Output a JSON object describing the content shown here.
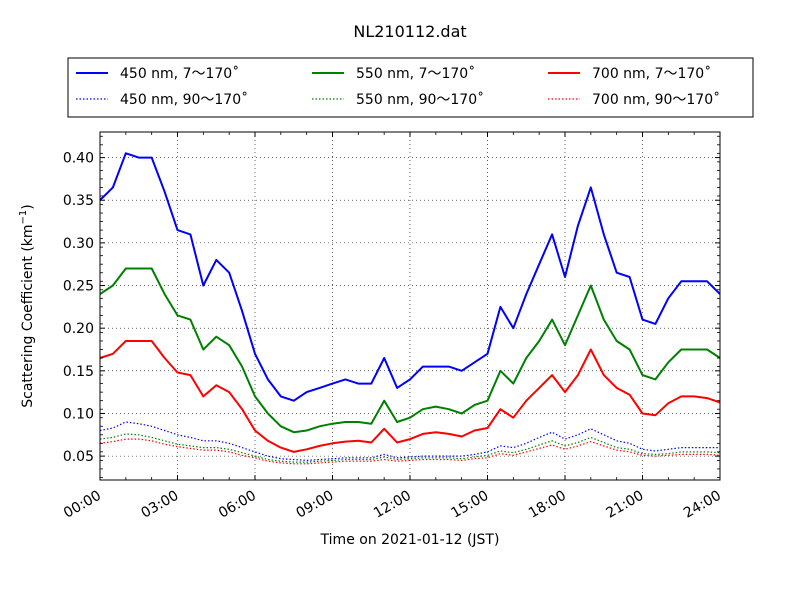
{
  "chart_data": {
    "type": "line",
    "title": "NL210112.dat",
    "xlabel": "Time on 2021-01-12 (JST)",
    "ylabel": "Scattering Coefficient (km",
    "ylabel_sup": "−1",
    "ylabel_end": ")",
    "xlim": [
      "00:00",
      "24:00"
    ],
    "ylim": [
      0.022,
      0.43
    ],
    "x_ticks": [
      "00:00",
      "03:00",
      "06:00",
      "09:00",
      "12:00",
      "15:00",
      "18:00",
      "21:00",
      "24:00"
    ],
    "y_ticks": [
      "0.05",
      "0.10",
      "0.15",
      "0.20",
      "0.25",
      "0.30",
      "0.35",
      "0.40"
    ],
    "grid": true,
    "legend_position": "top, above plot",
    "x": [
      "00:00",
      "00:30",
      "01:00",
      "01:30",
      "02:00",
      "02:30",
      "03:00",
      "03:30",
      "04:00",
      "04:30",
      "05:00",
      "05:30",
      "06:00",
      "06:30",
      "07:00",
      "07:30",
      "08:00",
      "08:30",
      "09:00",
      "09:30",
      "10:00",
      "10:30",
      "11:00",
      "11:30",
      "12:00",
      "12:30",
      "13:00",
      "13:30",
      "14:00",
      "14:30",
      "15:00",
      "15:30",
      "16:00",
      "16:30",
      "17:00",
      "17:30",
      "18:00",
      "18:30",
      "19:00",
      "19:30",
      "20:00",
      "20:30",
      "21:00",
      "21:30",
      "22:00",
      "22:30",
      "23:00",
      "23:30",
      "24:00"
    ],
    "series": [
      {
        "name": "450 nm, 7～170˚",
        "color": "#0000ff",
        "style": "solid",
        "values": [
          0.35,
          0.365,
          0.405,
          0.4,
          0.4,
          0.36,
          0.315,
          0.31,
          0.25,
          0.28,
          0.265,
          0.22,
          0.17,
          0.14,
          0.12,
          0.115,
          0.125,
          0.13,
          0.135,
          0.14,
          0.135,
          0.135,
          0.165,
          0.13,
          0.14,
          0.155,
          0.155,
          0.155,
          0.15,
          0.16,
          0.17,
          0.225,
          0.2,
          0.24,
          0.275,
          0.31,
          0.26,
          0.32,
          0.365,
          0.31,
          0.265,
          0.26,
          0.21,
          0.205,
          0.235,
          0.255,
          0.255,
          0.255,
          0.24
        ]
      },
      {
        "name": "550 nm, 7～170˚",
        "color": "#008000",
        "style": "solid",
        "values": [
          0.24,
          0.25,
          0.27,
          0.27,
          0.27,
          0.24,
          0.215,
          0.21,
          0.175,
          0.19,
          0.18,
          0.155,
          0.12,
          0.1,
          0.085,
          0.078,
          0.08,
          0.085,
          0.088,
          0.09,
          0.09,
          0.088,
          0.115,
          0.09,
          0.095,
          0.105,
          0.108,
          0.105,
          0.1,
          0.11,
          0.115,
          0.15,
          0.135,
          0.165,
          0.185,
          0.21,
          0.18,
          0.215,
          0.25,
          0.21,
          0.185,
          0.175,
          0.145,
          0.14,
          0.16,
          0.175,
          0.175,
          0.175,
          0.165
        ]
      },
      {
        "name": "700 nm, 7～170˚",
        "color": "#ff0000",
        "style": "solid",
        "values": [
          0.165,
          0.17,
          0.185,
          0.185,
          0.185,
          0.165,
          0.148,
          0.145,
          0.12,
          0.133,
          0.125,
          0.105,
          0.08,
          0.068,
          0.06,
          0.055,
          0.058,
          0.062,
          0.065,
          0.067,
          0.068,
          0.066,
          0.082,
          0.066,
          0.07,
          0.076,
          0.078,
          0.076,
          0.073,
          0.08,
          0.083,
          0.105,
          0.095,
          0.115,
          0.13,
          0.145,
          0.125,
          0.145,
          0.175,
          0.145,
          0.13,
          0.122,
          0.1,
          0.098,
          0.112,
          0.12,
          0.12,
          0.118,
          0.113
        ]
      },
      {
        "name": "450 nm, 90～170˚",
        "color": "#0000ff",
        "style": "dotted",
        "values": [
          0.08,
          0.083,
          0.09,
          0.088,
          0.085,
          0.08,
          0.075,
          0.072,
          0.068,
          0.068,
          0.065,
          0.06,
          0.055,
          0.05,
          0.047,
          0.046,
          0.045,
          0.046,
          0.047,
          0.048,
          0.048,
          0.048,
          0.052,
          0.048,
          0.049,
          0.05,
          0.05,
          0.05,
          0.05,
          0.052,
          0.055,
          0.062,
          0.06,
          0.065,
          0.072,
          0.078,
          0.07,
          0.075,
          0.082,
          0.075,
          0.068,
          0.065,
          0.058,
          0.056,
          0.058,
          0.06,
          0.06,
          0.06,
          0.06
        ]
      },
      {
        "name": "550 nm, 90～170˚",
        "color": "#008000",
        "style": "dotted",
        "values": [
          0.07,
          0.072,
          0.076,
          0.075,
          0.072,
          0.068,
          0.064,
          0.062,
          0.06,
          0.06,
          0.058,
          0.054,
          0.05,
          0.046,
          0.044,
          0.043,
          0.043,
          0.044,
          0.045,
          0.046,
          0.046,
          0.046,
          0.049,
          0.046,
          0.047,
          0.048,
          0.048,
          0.048,
          0.047,
          0.049,
          0.051,
          0.056,
          0.054,
          0.058,
          0.063,
          0.068,
          0.062,
          0.066,
          0.072,
          0.066,
          0.06,
          0.058,
          0.053,
          0.052,
          0.053,
          0.055,
          0.055,
          0.055,
          0.054
        ]
      },
      {
        "name": "700 nm, 90～170˚",
        "color": "#ff0000",
        "style": "dotted",
        "values": [
          0.065,
          0.067,
          0.07,
          0.07,
          0.068,
          0.064,
          0.061,
          0.059,
          0.057,
          0.057,
          0.055,
          0.051,
          0.048,
          0.044,
          0.042,
          0.041,
          0.041,
          0.042,
          0.043,
          0.044,
          0.044,
          0.044,
          0.046,
          0.044,
          0.045,
          0.046,
          0.046,
          0.046,
          0.045,
          0.047,
          0.048,
          0.053,
          0.051,
          0.055,
          0.059,
          0.063,
          0.058,
          0.062,
          0.067,
          0.062,
          0.057,
          0.055,
          0.051,
          0.05,
          0.051,
          0.052,
          0.052,
          0.052,
          0.051
        ]
      }
    ]
  }
}
